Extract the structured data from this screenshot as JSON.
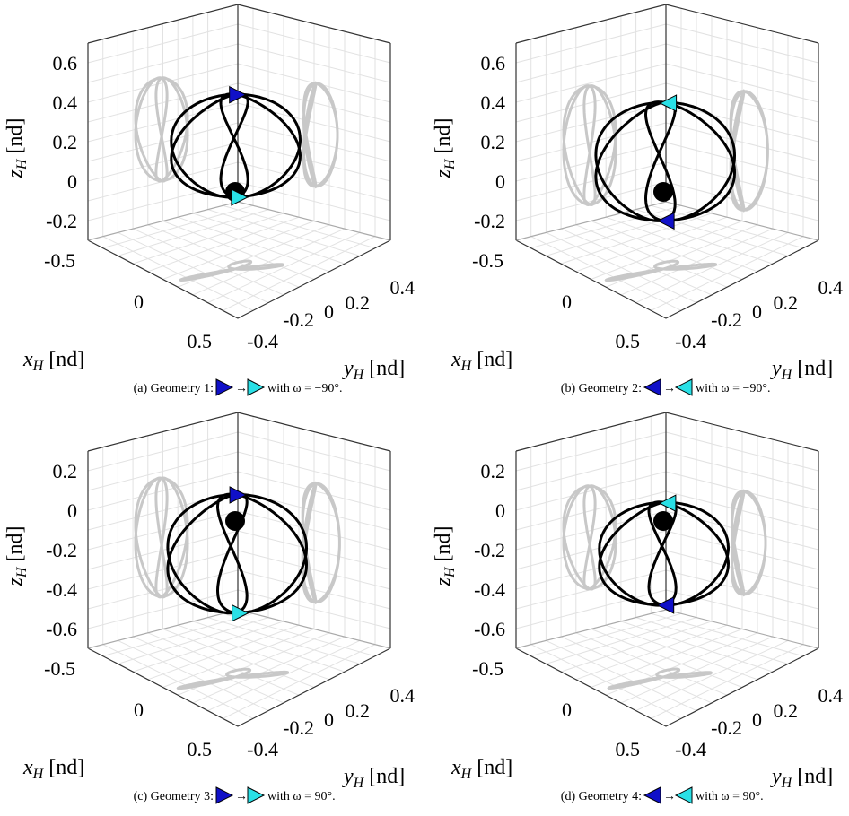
{
  "colors": {
    "trajectory": "#000000",
    "projection": "#c8c8c8",
    "start_marker": "#1010c8",
    "end_marker": "#29e0e6",
    "body": "#000000",
    "box": "#333333",
    "grid": "#e2e2e2"
  },
  "chart_data": [
    {
      "type": "3d-line",
      "caption_prefix": "(a) Geometry 1:",
      "caption_suffix": "with ω = −90°.",
      "marker_direction": "right",
      "xlabel": "x_H [nd]",
      "ylabel": "y_H [nd]",
      "zlabel": "z_H [nd]",
      "x_ticks": [
        "-0.5",
        "0",
        "0.5"
      ],
      "y_ticks": [
        "-0.4",
        "-0.2",
        "0",
        "0.2",
        "0.4"
      ],
      "z_ticks": [
        "0.6",
        "0.4",
        "0.2",
        "0",
        "-0.2"
      ],
      "zlim": [
        -0.3,
        0.7
      ],
      "grid": true,
      "series": [
        {
          "role": "trajectory",
          "z_center": 0.18,
          "z_amp": 0.26,
          "y_center": 0.0,
          "y_amp": 0.2,
          "x_amp": 0.22,
          "lobes": 3
        }
      ]
    },
    {
      "type": "3d-line",
      "caption_prefix": "(b) Geometry 2:",
      "caption_suffix": "with ω = −90°.",
      "marker_direction": "left",
      "xlabel": "x_H [nd]",
      "ylabel": "y_H [nd]",
      "zlabel": "z_H [nd]",
      "x_ticks": [
        "-0.5",
        "0",
        "0.5"
      ],
      "y_ticks": [
        "-0.4",
        "-0.2",
        "0",
        "0.2",
        "0.4"
      ],
      "z_ticks": [
        "0.6",
        "0.4",
        "0.2",
        "0",
        "-0.2"
      ],
      "zlim": [
        -0.3,
        0.7
      ],
      "grid": true,
      "series": [
        {
          "role": "trajectory",
          "z_center": 0.1,
          "z_amp": 0.3,
          "y_center": 0.0,
          "y_amp": 0.22,
          "x_amp": 0.22,
          "lobes": 3
        }
      ]
    },
    {
      "type": "3d-line",
      "caption_prefix": "(c) Geometry 3:",
      "caption_suffix": "with ω = 90°.",
      "marker_direction": "right",
      "xlabel": "x_H [nd]",
      "ylabel": "y_H [nd]",
      "zlabel": "z_H [nd]",
      "x_ticks": [
        "-0.5",
        "0",
        "0.5"
      ],
      "y_ticks": [
        "-0.4",
        "-0.2",
        "0",
        "0.2",
        "0.4"
      ],
      "z_ticks": [
        "0.2",
        "0",
        "-0.2",
        "-0.4",
        "-0.6"
      ],
      "zlim": [
        -0.7,
        0.3
      ],
      "grid": true,
      "series": [
        {
          "role": "trajectory",
          "z_center": -0.22,
          "z_amp": 0.3,
          "y_center": 0.0,
          "y_amp": 0.22,
          "x_amp": 0.22,
          "lobes": 3
        }
      ]
    },
    {
      "type": "3d-line",
      "caption_prefix": "(d) Geometry 4:",
      "caption_suffix": "with ω = 90°.",
      "marker_direction": "left",
      "xlabel": "x_H [nd]",
      "ylabel": "y_H [nd]",
      "zlabel": "z_H [nd]",
      "x_ticks": [
        "-0.5",
        "0",
        "0.5"
      ],
      "y_ticks": [
        "-0.4",
        "-0.2",
        "0",
        "0.2",
        "0.4"
      ],
      "z_ticks": [
        "0.2",
        "0",
        "-0.2",
        "-0.4",
        "-0.6"
      ],
      "zlim": [
        -0.7,
        0.3
      ],
      "grid": true,
      "series": [
        {
          "role": "trajectory",
          "z_center": -0.22,
          "z_amp": 0.26,
          "y_center": 0.0,
          "y_amp": 0.2,
          "x_amp": 0.22,
          "lobes": 3
        }
      ]
    }
  ]
}
